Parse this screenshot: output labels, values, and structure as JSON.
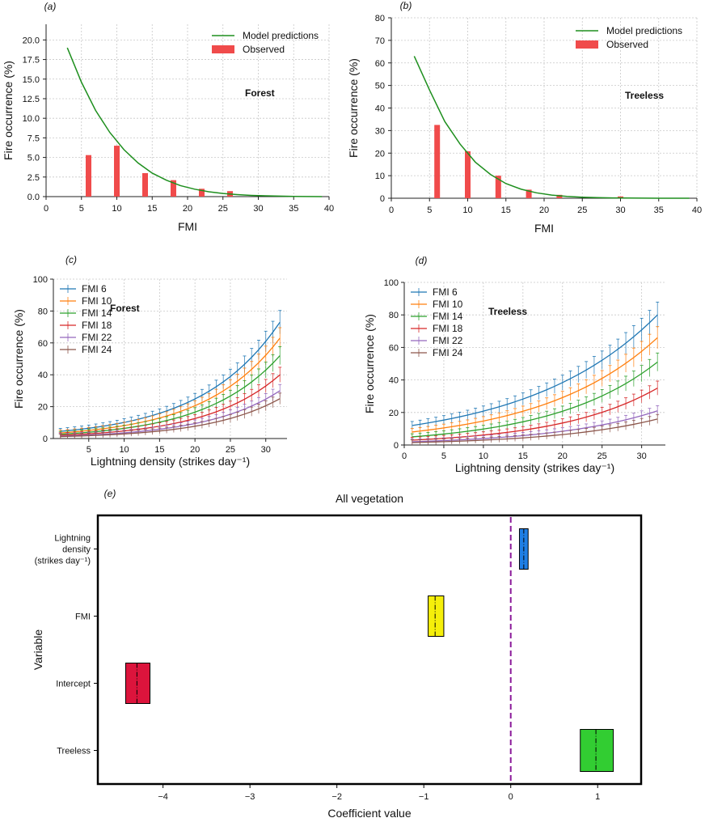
{
  "chart_data": [
    {
      "id": "a",
      "type": "bar+line",
      "panel_label": "(a)",
      "annotation": "Forest",
      "xlabel": "FMI",
      "ylabel": "Fire occurrence (%)",
      "xlim": [
        0,
        40
      ],
      "ylim": [
        0,
        22
      ],
      "xticks": [
        0,
        5,
        10,
        15,
        20,
        25,
        30,
        35,
        40
      ],
      "yticks": [
        "0.0",
        "2.5",
        "5.0",
        "7.5",
        "10.0",
        "12.5",
        "15.0",
        "17.5",
        "20.0"
      ],
      "legend": {
        "line": "Model predictions",
        "bar": "Observed",
        "position": "top-right"
      },
      "model_line": {
        "x": [
          3,
          5,
          7,
          9,
          11,
          13,
          15,
          17,
          19,
          21,
          23,
          25,
          27,
          29,
          31,
          33,
          35,
          37,
          39
        ],
        "y": [
          19.0,
          14.6,
          11.0,
          8.2,
          6.0,
          4.3,
          3.0,
          2.1,
          1.4,
          0.95,
          0.62,
          0.4,
          0.26,
          0.16,
          0.1,
          0.06,
          0.03,
          0.015,
          0.0
        ]
      },
      "observed": {
        "x": [
          6,
          10,
          14,
          18,
          22,
          26
        ],
        "y": [
          5.3,
          6.5,
          3.0,
          2.1,
          1.0,
          0.7
        ]
      },
      "colors": {
        "line": "#1e8f1e",
        "bar": "#f04b4b"
      }
    },
    {
      "id": "b",
      "type": "bar+line",
      "panel_label": "(b)",
      "annotation": "Treeless",
      "xlabel": "FMI",
      "ylabel": "Fire occurrence (%)",
      "xlim": [
        0,
        40
      ],
      "ylim": [
        0,
        80
      ],
      "xticks": [
        0,
        5,
        10,
        15,
        20,
        25,
        30,
        35,
        40
      ],
      "yticks": [
        "0",
        "10",
        "20",
        "30",
        "40",
        "50",
        "60",
        "70",
        "80"
      ],
      "legend": {
        "line": "Model predictions",
        "bar": "Observed",
        "position": "top-right"
      },
      "model_line": {
        "x": [
          3,
          5,
          7,
          9,
          11,
          13,
          15,
          17,
          19,
          21,
          23,
          25,
          27,
          29,
          31,
          33,
          35,
          37,
          39
        ],
        "y": [
          63,
          48,
          34,
          24,
          16,
          10.5,
          6.5,
          4.0,
          2.4,
          1.4,
          0.8,
          0.45,
          0.25,
          0.13,
          0.07,
          0.03,
          0.015,
          0.005,
          0.0
        ]
      },
      "observed": {
        "x": [
          6,
          10,
          14,
          18,
          22,
          30
        ],
        "y": [
          32.5,
          20.8,
          10.0,
          3.8,
          1.5,
          0.8
        ]
      },
      "colors": {
        "line": "#1e8f1e",
        "bar": "#f04b4b"
      }
    },
    {
      "id": "c",
      "type": "line",
      "panel_label": "(c)",
      "annotation": "Forest",
      "xlabel": "Lightning density (strikes day⁻¹)",
      "ylabel": "Fire occurrence (%)",
      "xlim": [
        0,
        33
      ],
      "ylim": [
        0,
        100
      ],
      "xticks": [
        5,
        10,
        15,
        20,
        25,
        30
      ],
      "yticks": [
        0,
        20,
        40,
        60,
        80,
        100
      ],
      "legend_position": "top-left",
      "series": [
        {
          "name": "FMI 6",
          "color": "#1f77b4",
          "start": 4.5,
          "end": 73
        },
        {
          "name": "FMI 10",
          "color": "#ff7f0e",
          "start": 3.5,
          "end": 63
        },
        {
          "name": "FMI 14",
          "color": "#2ca02c",
          "start": 2.7,
          "end": 52
        },
        {
          "name": "FMI 18",
          "color": "#d62728",
          "start": 2.0,
          "end": 40
        },
        {
          "name": "FMI 22",
          "color": "#9467bd",
          "start": 1.5,
          "end": 30
        },
        {
          "name": "FMI 24",
          "color": "#8c564b",
          "start": 1.2,
          "end": 25
        }
      ]
    },
    {
      "id": "d",
      "type": "line",
      "panel_label": "(d)",
      "annotation": "Treeless",
      "xlabel": "Lightning density (strikes day⁻¹)",
      "ylabel": "Fire occurrence (%)",
      "xlim": [
        0,
        33
      ],
      "ylim": [
        0,
        100
      ],
      "xticks": [
        0,
        5,
        10,
        15,
        20,
        25,
        30
      ],
      "yticks": [
        0,
        20,
        40,
        60,
        80,
        100
      ],
      "legend_position": "top-left",
      "series": [
        {
          "name": "FMI 6",
          "color": "#1f77b4",
          "start": 12,
          "end": 80
        },
        {
          "name": "FMI 10",
          "color": "#ff7f0e",
          "start": 8,
          "end": 66
        },
        {
          "name": "FMI 14",
          "color": "#2ca02c",
          "start": 5,
          "end": 51
        },
        {
          "name": "FMI 18",
          "color": "#d62728",
          "start": 3,
          "end": 35
        },
        {
          "name": "FMI 22",
          "color": "#9467bd",
          "start": 2,
          "end": 21
        },
        {
          "name": "FMI 24",
          "color": "#8c564b",
          "start": 1.5,
          "end": 16
        }
      ]
    },
    {
      "id": "e",
      "type": "box",
      "panel_label": "(e)",
      "title": "All vegetation",
      "xlabel": "Coefficient value",
      "ylabel": "Variable",
      "xlim": [
        -4.75,
        1.5
      ],
      "xticks": [
        -4,
        -3,
        -2,
        -1,
        0,
        1
      ],
      "xtick_labels": [
        "−4",
        "−3",
        "−2",
        "−1",
        "0",
        "1"
      ],
      "reference_line": 0,
      "categories": [
        {
          "label_lines": [
            "Lightning",
            "density",
            "(strikes day⁻¹)"
          ],
          "low": 0.1,
          "median": 0.15,
          "high": 0.2,
          "color": "#1e7fe6"
        },
        {
          "label_lines": [
            "FMI"
          ],
          "low": -0.95,
          "median": -0.87,
          "high": -0.77,
          "color": "#f5ef0a"
        },
        {
          "label_lines": [
            "Intercept"
          ],
          "low": -4.43,
          "median": -4.3,
          "high": -4.15,
          "color": "#dc143c"
        },
        {
          "label_lines": [
            "Treeless"
          ],
          "low": 0.8,
          "median": 0.98,
          "high": 1.18,
          "color": "#32cd32"
        }
      ]
    }
  ]
}
